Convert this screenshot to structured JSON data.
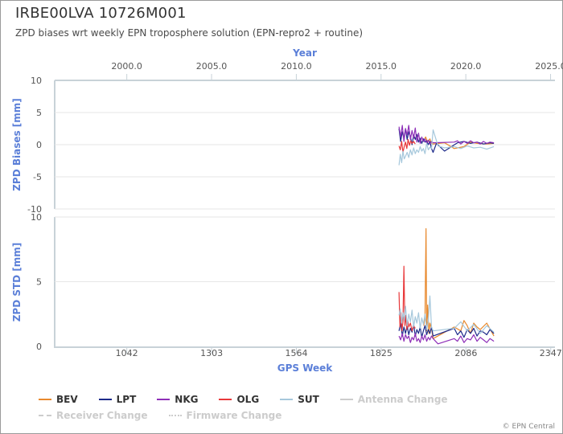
{
  "title": "IRBE00LVA 10726M001",
  "subtitle": "ZPD biases wrt weekly EPN troposphere solution (EPN-repro2 + routine)",
  "credit": "© EPN Central",
  "legend": [
    {
      "label": "BEV",
      "color": "#e8892d",
      "active": true,
      "style": "solid"
    },
    {
      "label": "LPT",
      "color": "#1d2a8a",
      "active": true,
      "style": "solid"
    },
    {
      "label": "NKG",
      "color": "#8e2fb8",
      "active": true,
      "style": "solid"
    },
    {
      "label": "OLG",
      "color": "#e8383a",
      "active": true,
      "style": "solid"
    },
    {
      "label": "SUT",
      "color": "#a6c8dc",
      "active": true,
      "style": "solid"
    },
    {
      "label": "Antenna Change",
      "color": "#cccccc",
      "active": false,
      "style": "solid"
    },
    {
      "label": "Receiver Change",
      "color": "#cccccc",
      "active": false,
      "style": "dashed"
    },
    {
      "label": "Firmware Change",
      "color": "#cccccc",
      "active": false,
      "style": "dotted"
    }
  ],
  "chart_data": [
    {
      "type": "line",
      "panel": "bias",
      "top_axis_title": "Year",
      "top_axis_ticks": [
        "2000.0",
        "2005.0",
        "2010.0",
        "2015.0",
        "2020.0",
        "2025.0"
      ],
      "top_axis_tick_values": [
        2000.0,
        2005.0,
        2010.0,
        2015.0,
        2020.0,
        2025.0
      ],
      "ylabel": "ZPD Biases [mm]",
      "ylim": [
        -10,
        10
      ],
      "y_ticks": [
        "10",
        "5",
        "0",
        "-5",
        "-10"
      ],
      "y_tick_values": [
        10,
        5,
        0,
        -5,
        -10
      ],
      "xlim": [
        820,
        2360
      ],
      "grid": true,
      "series": [
        {
          "name": "BEV",
          "x": [
            1956,
            1962,
            1968,
            1975,
            1980,
            1985,
            2020,
            2050,
            2060,
            2080,
            2100,
            2120,
            2150,
            2172
          ],
          "y": [
            0.6,
            1.2,
            0.4,
            0.9,
            0.2,
            0.1,
            0.3,
            -0.6,
            -0.5,
            -0.3,
            0.4,
            0.2,
            0.1,
            0.2
          ]
        },
        {
          "name": "LPT",
          "x": [
            1880,
            1885,
            1890,
            1895,
            1900,
            1905,
            1910,
            1915,
            1920,
            1925,
            1930,
            1935,
            1940,
            1945,
            1950,
            1955,
            1960,
            1965,
            1970,
            1975,
            1980,
            1985,
            1995,
            2020,
            2060,
            2080,
            2100,
            2120,
            2140,
            2160,
            2172
          ],
          "y": [
            2.5,
            0.5,
            2.0,
            1.0,
            2.5,
            0.8,
            2.0,
            1.2,
            0.0,
            1.5,
            0.8,
            1.6,
            0.4,
            1.0,
            0.2,
            0.9,
            0.4,
            0.6,
            0.0,
            0.5,
            -0.6,
            -1.2,
            0.2,
            -1.0,
            0.3,
            0.5,
            0.2,
            0.4,
            0.1,
            0.3,
            0.2
          ]
        },
        {
          "name": "NKG",
          "x": [
            1880,
            1885,
            1890,
            1895,
            1900,
            1905,
            1910,
            1915,
            1920,
            1925,
            1930,
            1935,
            1940,
            1945,
            1950,
            1955,
            1960,
            1965,
            1970,
            1975,
            1980,
            1985,
            2050,
            2060,
            2070,
            2080,
            2090,
            2100,
            2110,
            2120,
            2130,
            2140,
            2150,
            2160,
            2172
          ],
          "y": [
            2.8,
            1.2,
            3.0,
            0.5,
            2.5,
            1.5,
            3.0,
            0.8,
            2.2,
            1.0,
            2.6,
            0.4,
            1.8,
            0.2,
            1.2,
            0.5,
            0.9,
            0.3,
            0.7,
            0.1,
            0.5,
            0.3,
            0.4,
            0.6,
            0.1,
            0.5,
            0.2,
            0.6,
            0.3,
            0.4,
            0.1,
            0.5,
            0.2,
            0.4,
            0.3
          ]
        },
        {
          "name": "OLG",
          "x": [
            1880,
            1884,
            1888,
            1892,
            1896,
            1900,
            1904,
            1908,
            1912,
            1916,
            1920,
            1925,
            1930
          ],
          "y": [
            -0.2,
            -0.8,
            0.5,
            -1.2,
            -0.3,
            0.4,
            -0.6,
            0.8,
            -0.1,
            0.6,
            0.2,
            0.5,
            0.1
          ]
        },
        {
          "name": "SUT",
          "x": [
            1880,
            1884,
            1888,
            1892,
            1896,
            1900,
            1905,
            1910,
            1915,
            1920,
            1925,
            1930,
            1935,
            1940,
            1945,
            1950,
            1955,
            1960,
            1965,
            1970,
            1975,
            1980,
            1985,
            2000,
            2020,
            2050,
            2070,
            2090,
            2110,
            2130,
            2150,
            2172
          ],
          "y": [
            -3.2,
            -1.5,
            -2.8,
            -1.0,
            -2.2,
            -1.8,
            -1.2,
            -2.0,
            -0.8,
            -1.6,
            -0.5,
            -1.4,
            -0.8,
            -1.2,
            -0.3,
            -1.0,
            -0.6,
            -1.4,
            0.2,
            -0.8,
            -0.4,
            -0.6,
            2.3,
            -0.2,
            -0.5,
            -0.3,
            -0.6,
            -0.2,
            -0.5,
            -0.4,
            -0.7,
            -0.3
          ]
        }
      ]
    },
    {
      "type": "line",
      "panel": "std",
      "xlabel": "GPS Week",
      "x_ticks": [
        "1042",
        "1303",
        "1564",
        "1825",
        "2086",
        "2347"
      ],
      "x_tick_values": [
        1042,
        1303,
        1564,
        1825,
        2086,
        2347
      ],
      "ylabel": "ZPD STD [mm]",
      "ylim": [
        0,
        10
      ],
      "y_ticks": [
        "10",
        "5",
        "0"
      ],
      "y_tick_values": [
        10,
        5,
        0
      ],
      "xlim": [
        820,
        2360
      ],
      "grid": true,
      "series": [
        {
          "name": "BEV",
          "x": [
            1956,
            1960,
            1963,
            1965,
            1968,
            1972,
            1975,
            1980,
            1985,
            2050,
            2070,
            2080,
            2090,
            2100,
            2110,
            2120,
            2130,
            2150,
            2172
          ],
          "y": [
            1.6,
            2.2,
            9.1,
            1.2,
            3.2,
            1.0,
            1.8,
            1.4,
            0.6,
            1.5,
            1.2,
            2.0,
            1.6,
            1.0,
            1.8,
            1.5,
            1.3,
            1.8,
            0.8
          ]
        },
        {
          "name": "LPT",
          "x": [
            1880,
            1885,
            1890,
            1895,
            1900,
            1905,
            1910,
            1915,
            1920,
            1925,
            1930,
            1935,
            1940,
            1945,
            1950,
            1955,
            1960,
            1965,
            1970,
            1975,
            1980,
            1985,
            2050,
            2060,
            2070,
            2080,
            2090,
            2100,
            2110,
            2120,
            2130,
            2140,
            2150,
            2160,
            2172
          ],
          "y": [
            1.2,
            1.8,
            0.8,
            1.5,
            1.0,
            1.6,
            0.9,
            1.4,
            1.1,
            1.7,
            0.8,
            1.3,
            1.0,
            1.5,
            0.7,
            1.2,
            1.6,
            0.9,
            1.3,
            1.0,
            1.5,
            0.8,
            1.4,
            0.9,
            1.2,
            0.7,
            1.3,
            1.0,
            1.4,
            0.8,
            1.2,
            1.1,
            0.9,
            1.3,
            1.0
          ]
        },
        {
          "name": "NKG",
          "x": [
            1880,
            1885,
            1890,
            1895,
            1900,
            1905,
            1910,
            1915,
            1920,
            1925,
            1930,
            1935,
            1940,
            1945,
            1950,
            1955,
            1960,
            1965,
            1970,
            1975,
            1980,
            1985,
            2000,
            2050,
            2060,
            2070,
            2080,
            2090,
            2100,
            2110,
            2120,
            2130,
            2140,
            2150,
            2160,
            2172
          ],
          "y": [
            0.8,
            0.5,
            1.0,
            0.4,
            0.9,
            0.6,
            0.8,
            0.3,
            0.7,
            0.5,
            1.0,
            0.4,
            0.6,
            0.3,
            0.8,
            0.5,
            0.9,
            0.4,
            0.7,
            0.5,
            0.8,
            0.6,
            0.2,
            0.6,
            0.4,
            0.8,
            0.3,
            0.6,
            0.5,
            0.9,
            0.4,
            0.7,
            0.5,
            0.3,
            0.6,
            0.4
          ]
        },
        {
          "name": "OLG",
          "x": [
            1880,
            1883,
            1886,
            1889,
            1892,
            1895,
            1898,
            1901,
            1904,
            1907,
            1910,
            1915,
            1920,
            1925,
            1930
          ],
          "y": [
            4.2,
            1.5,
            2.6,
            1.2,
            1.9,
            6.2,
            1.6,
            2.4,
            1.3,
            2.0,
            1.5,
            1.8,
            1.2,
            1.6,
            1.4
          ]
        },
        {
          "name": "SUT",
          "x": [
            1880,
            1884,
            1888,
            1892,
            1896,
            1900,
            1905,
            1910,
            1915,
            1920,
            1925,
            1930,
            1935,
            1940,
            1945,
            1950,
            1955,
            1960,
            1965,
            1970,
            1975,
            1980,
            1985,
            2050,
            2070,
            2090,
            2110,
            2130,
            2150,
            2172
          ],
          "y": [
            2.4,
            2.9,
            1.8,
            2.6,
            2.0,
            3.1,
            1.6,
            2.5,
            1.9,
            2.8,
            1.5,
            2.3,
            1.8,
            2.6,
            1.4,
            2.2,
            1.7,
            2.5,
            1.3,
            2.0,
            3.9,
            1.5,
            1.2,
            1.4,
            1.9,
            1.2,
            1.7,
            1.0,
            1.6,
            1.1
          ]
        }
      ]
    }
  ]
}
